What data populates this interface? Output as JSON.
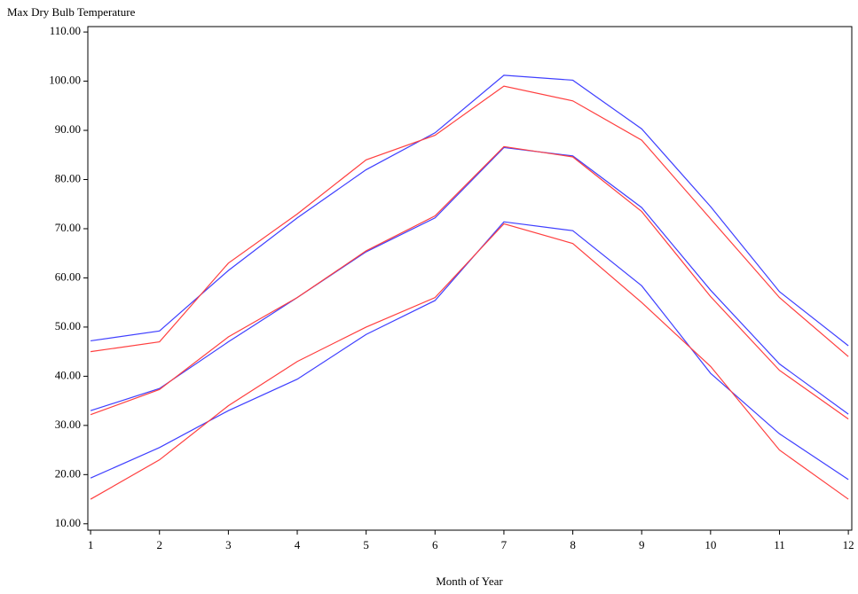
{
  "chart_data": {
    "type": "line",
    "ylabel": "Max Dry Bulb Temperature",
    "xlabel": "Month of Year",
    "x": [
      1,
      2,
      3,
      4,
      5,
      6,
      7,
      8,
      9,
      10,
      11,
      12
    ],
    "xlim": [
      0.96,
      12.05
    ],
    "xticks": [
      1,
      2,
      3,
      4,
      5,
      6,
      7,
      8,
      9,
      10,
      11,
      12
    ],
    "ylim": [
      8.7,
      111.1
    ],
    "yticks": [
      {
        "value": 10,
        "label": "10.00"
      },
      {
        "value": 20,
        "label": "20.00"
      },
      {
        "value": 30,
        "label": "30.00"
      },
      {
        "value": 40,
        "label": "40.00"
      },
      {
        "value": 50,
        "label": "50.00"
      },
      {
        "value": 60,
        "label": "60.00"
      },
      {
        "value": 70,
        "label": "70.00"
      },
      {
        "value": 80,
        "label": "80.00"
      },
      {
        "value": 90,
        "label": "90.00"
      },
      {
        "value": 100,
        "label": "100.00"
      },
      {
        "value": 110,
        "label": "110.00"
      }
    ],
    "series": [
      {
        "color": "#3f3fff",
        "values": [
          47.2,
          49.2,
          61.5,
          72.2,
          82,
          89.5,
          101.2,
          100.2,
          90.3,
          74.5,
          57.2,
          46.2
        ]
      },
      {
        "color": "#ff3f3f",
        "values": [
          45,
          47,
          63,
          73,
          84,
          89,
          99,
          96,
          88,
          72,
          56,
          44
        ]
      },
      {
        "color": "#3f3fff",
        "values": [
          33,
          37.5,
          47,
          56,
          65.3,
          72.2,
          86.5,
          84.8,
          74.3,
          57.5,
          42.5,
          32.3
        ]
      },
      {
        "color": "#ff3f3f",
        "values": [
          32.2,
          37.3,
          48,
          56,
          65.5,
          72.6,
          86.7,
          84.6,
          73.5,
          56.2,
          41.2,
          31.3
        ]
      },
      {
        "color": "#3f3fff",
        "values": [
          19.3,
          25.5,
          33,
          39.4,
          48.5,
          55.4,
          71.4,
          69.6,
          58.4,
          40.6,
          28.3,
          19
        ]
      },
      {
        "color": "#ff3f3f",
        "values": [
          15,
          23,
          34,
          43,
          50,
          56,
          71,
          67,
          55,
          42,
          25,
          15
        ]
      }
    ]
  }
}
